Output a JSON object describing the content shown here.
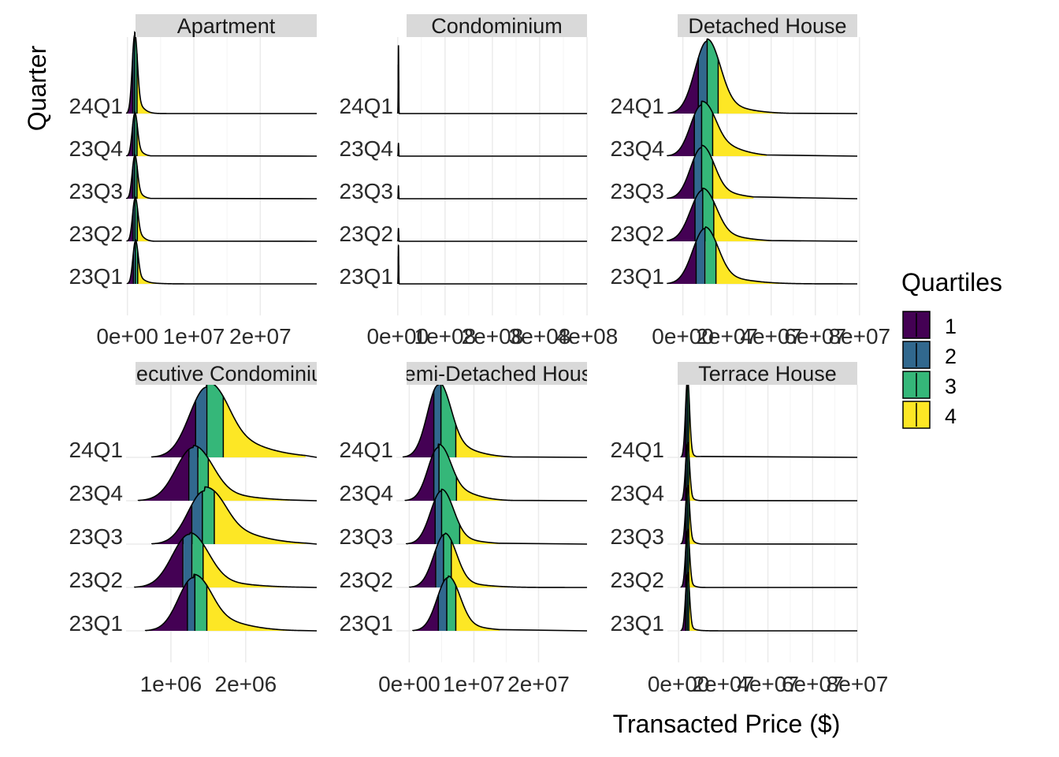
{
  "chart_data": {
    "type": "ridgeline",
    "xlabel": "Transacted Price ($)",
    "ylabel": "Quarter",
    "legend": {
      "title": "Quartiles",
      "placement": "right",
      "items": [
        {
          "label": "1",
          "color": "#440154"
        },
        {
          "label": "2",
          "color": "#31688e"
        },
        {
          "label": "3",
          "color": "#35b779"
        },
        {
          "label": "4",
          "color": "#fde725"
        }
      ]
    },
    "quarters": [
      "23Q1",
      "23Q2",
      "23Q3",
      "23Q4",
      "24Q1"
    ],
    "panels": [
      {
        "title": "Apartment",
        "x_ticks": [
          {
            "value": 0,
            "label": "0e+00"
          },
          {
            "value": 10000000,
            "label": "1e+07"
          },
          {
            "value": 20000000,
            "label": "2e+07"
          }
        ],
        "xlim": [
          -200000,
          28500000
        ],
        "ridges": [
          {
            "quarter": "23Q1",
            "peak": 1200000,
            "width": 380000,
            "q1": 900000,
            "q2": 1200000,
            "q3": 1550000,
            "q3end": 1800000,
            "height": 1.0,
            "tail": 0.15,
            "tail_end": 9000000
          },
          {
            "quarter": "23Q2",
            "peak": 1150000,
            "width": 380000,
            "q1": 850000,
            "q2": 1150000,
            "q3": 1500000,
            "q3end": 1800000,
            "height": 1.0,
            "tail": 0.18,
            "tail_end": 4000000
          },
          {
            "quarter": "23Q3",
            "peak": 1100000,
            "width": 380000,
            "q1": 820000,
            "q2": 1100000,
            "q3": 1450000,
            "q3end": 1800000,
            "height": 1.0,
            "tail": 0.15,
            "tail_end": 3500000
          },
          {
            "quarter": "23Q4",
            "peak": 1100000,
            "width": 380000,
            "q1": 820000,
            "q2": 1100000,
            "q3": 1450000,
            "q3end": 1800000,
            "height": 1.0,
            "tail": 0.15,
            "tail_end": 3500000
          },
          {
            "quarter": "24Q1",
            "peak": 1100000,
            "width": 380000,
            "q1": 820000,
            "q2": 1100000,
            "q3": 1450000,
            "q3end": 1800000,
            "height": 1.85,
            "tail": 0.12,
            "tail_end": 6000000
          }
        ]
      },
      {
        "title": "Condominium",
        "x_ticks": [
          {
            "value": 0,
            "label": "0e+00"
          },
          {
            "value": 100000000,
            "label": "1e+08"
          },
          {
            "value": 200000000,
            "label": "2e+08"
          },
          {
            "value": 300000000,
            "label": "3e+08"
          },
          {
            "value": 400000000,
            "label": "4e+08"
          }
        ],
        "xlim": [
          -3000000,
          400000000
        ],
        "ridges": [
          {
            "quarter": "23Q1",
            "peak": 1500000,
            "width": 500000,
            "q1": 1100000,
            "q2": 1500000,
            "q3": 2100000,
            "q3end": 3000000,
            "height": 0.9,
            "tail": 0.0,
            "tail_end": 4000000
          },
          {
            "quarter": "23Q2",
            "peak": 1500000,
            "width": 500000,
            "q1": 1100000,
            "q2": 1500000,
            "q3": 2100000,
            "q3end": 3000000,
            "height": 0.3,
            "tail": 0.0,
            "tail_end": 4000000
          },
          {
            "quarter": "23Q3",
            "peak": 1500000,
            "width": 500000,
            "q1": 1100000,
            "q2": 1500000,
            "q3": 2100000,
            "q3end": 3000000,
            "height": 0.3,
            "tail": 0.0,
            "tail_end": 4000000
          },
          {
            "quarter": "23Q4",
            "peak": 1500000,
            "width": 500000,
            "q1": 1100000,
            "q2": 1500000,
            "q3": 2100000,
            "q3end": 3000000,
            "height": 0.3,
            "tail": 0.0,
            "tail_end": 4000000
          },
          {
            "quarter": "24Q1",
            "peak": 1500000,
            "width": 500000,
            "q1": 1100000,
            "q2": 1500000,
            "q3": 2100000,
            "q3end": 3000000,
            "height": 1.6,
            "tail": 0.0,
            "tail_end": 4000000
          }
        ]
      },
      {
        "title": "Detached House",
        "x_ticks": [
          {
            "value": 0,
            "label": "0e+00"
          },
          {
            "value": 20000000,
            "label": "2e+07"
          },
          {
            "value": 40000000,
            "label": "4e+07"
          },
          {
            "value": 60000000,
            "label": "6e+07"
          },
          {
            "value": 80000000,
            "label": "8e+07"
          }
        ],
        "xlim": [
          -7000000,
          79000000
        ],
        "ridges": [
          {
            "quarter": "23Q1",
            "peak": 10000000,
            "width": 5500000,
            "q1": 6000000,
            "q2": 10000000,
            "q3": 15000000,
            "q3end": 28000000,
            "height": 1.3,
            "tail": 0.12,
            "tail_end": 76000000
          },
          {
            "quarter": "23Q2",
            "peak": 9000000,
            "width": 5500000,
            "q1": 5500000,
            "q2": 9000000,
            "q3": 14000000,
            "q3end": 28000000,
            "height": 1.2,
            "tail": 0.15,
            "tail_end": 40000000
          },
          {
            "quarter": "23Q3",
            "peak": 8500000,
            "width": 5000000,
            "q1": 5000000,
            "q2": 8500000,
            "q3": 13500000,
            "q3end": 28000000,
            "height": 1.2,
            "tail": 0.18,
            "tail_end": 32000000
          },
          {
            "quarter": "23Q4",
            "peak": 8500000,
            "width": 5000000,
            "q1": 5200000,
            "q2": 8500000,
            "q3": 13500000,
            "q3end": 28000000,
            "height": 1.2,
            "tail": 0.3,
            "tail_end": 38000000
          },
          {
            "quarter": "24Q1",
            "peak": 11000000,
            "width": 5500000,
            "q1": 7000000,
            "q2": 11000000,
            "q3": 16000000,
            "q3end": 28000000,
            "height": 1.7,
            "tail": 0.12,
            "tail_end": 48000000
          }
        ]
      },
      {
        "title": "Executive Condominium",
        "x_ticks": [
          {
            "value": 1000000,
            "label": "1e+06"
          },
          {
            "value": 2000000,
            "label": "2e+06"
          }
        ],
        "xlim": [
          400000,
          2950000
        ],
        "ridges": [
          {
            "quarter": "23Q1",
            "peak": 1300000,
            "width": 200000,
            "q1": 1220000,
            "q2": 1320000,
            "q3": 1480000,
            "q3end": 2000000,
            "height": 1.25,
            "tail": 0.25,
            "tail_end": 2700000
          },
          {
            "quarter": "23Q2",
            "peak": 1250000,
            "width": 230000,
            "q1": 1160000,
            "q2": 1280000,
            "q3": 1430000,
            "q3end": 2000000,
            "height": 1.25,
            "tail": 0.12,
            "tail_end": 2700000
          },
          {
            "quarter": "23Q3",
            "peak": 1450000,
            "width": 220000,
            "q1": 1280000,
            "q2": 1420000,
            "q3": 1580000,
            "q3end": 2000000,
            "height": 1.25,
            "tail": 0.3,
            "tail_end": 2800000
          },
          {
            "quarter": "23Q4",
            "peak": 1300000,
            "width": 230000,
            "q1": 1240000,
            "q2": 1360000,
            "q3": 1500000,
            "q3end": 2000000,
            "height": 1.25,
            "tail": 0.15,
            "tail_end": 2600000
          },
          {
            "quarter": "24Q1",
            "peak": 1480000,
            "width": 230000,
            "q1": 1330000,
            "q2": 1480000,
            "q3": 1700000,
            "q3end": 2000000,
            "height": 1.65,
            "tail": 0.3,
            "tail_end": 2800000
          }
        ]
      },
      {
        "title": "Semi-Detached House",
        "x_ticks": [
          {
            "value": 0,
            "label": "0e+00"
          },
          {
            "value": 10000000,
            "label": "1e+07"
          },
          {
            "value": 20000000,
            "label": "2e+07"
          }
        ],
        "xlim": [
          -2000000,
          27500000
        ],
        "ridges": [
          {
            "quarter": "23Q1",
            "peak": 6000000,
            "width": 1700000,
            "q1": 4500000,
            "q2": 5800000,
            "q3": 7200000,
            "q3end": 12000000,
            "height": 1.25,
            "tail": 0.12,
            "tail_end": 14000000
          },
          {
            "quarter": "23Q2",
            "peak": 5500000,
            "width": 1700000,
            "q1": 4100000,
            "q2": 5300000,
            "q3": 6500000,
            "q3end": 12000000,
            "height": 1.25,
            "tail": 0.08,
            "tail_end": 26000000
          },
          {
            "quarter": "23Q3",
            "peak": 5000000,
            "width": 1700000,
            "q1": 4000000,
            "q2": 5000000,
            "q3": 7800000,
            "q3end": 12000000,
            "height": 1.25,
            "tail": 0.12,
            "tail_end": 14000000
          },
          {
            "quarter": "23Q4",
            "peak": 4500000,
            "width": 1600000,
            "q1": 3800000,
            "q2": 4600000,
            "q3": 7300000,
            "q3end": 12000000,
            "height": 1.25,
            "tail": 0.25,
            "tail_end": 16000000
          },
          {
            "quarter": "24Q1",
            "peak": 4500000,
            "width": 1700000,
            "q1": 3800000,
            "q2": 4900000,
            "q3": 7200000,
            "q3end": 12000000,
            "height": 1.7,
            "tail": 0.18,
            "tail_end": 16000000
          }
        ]
      },
      {
        "title": "Terrace House",
        "x_ticks": [
          {
            "value": 0,
            "label": "0e+00"
          },
          {
            "value": 20000000,
            "label": "2e+07"
          },
          {
            "value": 40000000,
            "label": "4e+07"
          },
          {
            "value": 60000000,
            "label": "6e+07"
          },
          {
            "value": 80000000,
            "label": "8e+07"
          }
        ],
        "xlim": [
          -5000000,
          80000000
        ],
        "ridges": [
          {
            "quarter": "23Q1",
            "peak": 4000000,
            "width": 900000,
            "q1": 3200000,
            "q2": 3900000,
            "q3": 4600000,
            "q3end": 7000000,
            "height": 1.35,
            "tail": 0.05,
            "tail_end": 20000000
          },
          {
            "quarter": "23Q2",
            "peak": 4000000,
            "width": 900000,
            "q1": 3200000,
            "q2": 3900000,
            "q3": 4600000,
            "q3end": 7000000,
            "height": 1.35,
            "tail": 0.05,
            "tail_end": 12000000
          },
          {
            "quarter": "23Q3",
            "peak": 4000000,
            "width": 900000,
            "q1": 3200000,
            "q2": 3900000,
            "q3": 4600000,
            "q3end": 7000000,
            "height": 1.35,
            "tail": 0.08,
            "tail_end": 10000000
          },
          {
            "quarter": "23Q4",
            "peak": 4000000,
            "width": 900000,
            "q1": 3200000,
            "q2": 3900000,
            "q3": 4600000,
            "q3end": 7000000,
            "height": 1.35,
            "tail": 0.05,
            "tail_end": 10000000
          },
          {
            "quarter": "24Q1",
            "peak": 4000000,
            "width": 900000,
            "q1": 3200000,
            "q2": 3900000,
            "q3": 4600000,
            "q3end": 7000000,
            "height": 1.85,
            "tail": 0.05,
            "tail_end": 8000000
          }
        ]
      }
    ]
  }
}
